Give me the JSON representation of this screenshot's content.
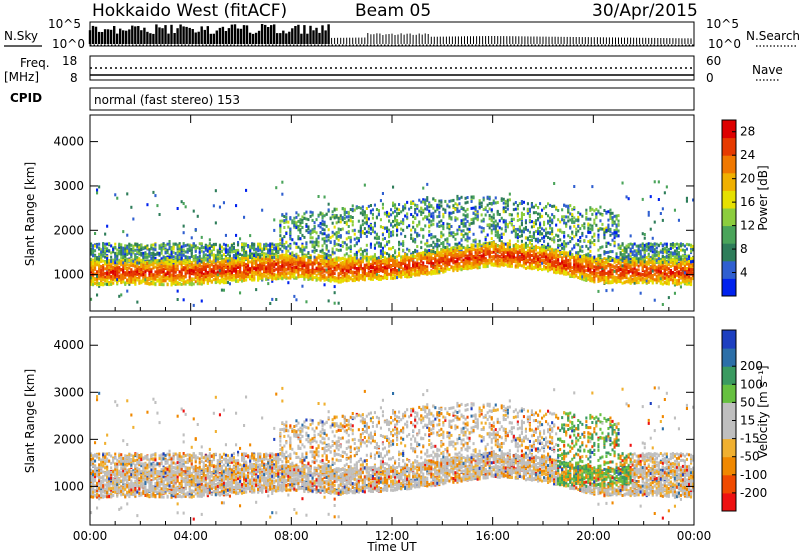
{
  "header": {
    "station": "Hokkaido West (fitACF)",
    "beam": "Beam 05",
    "date": "30/Apr/2015"
  },
  "params": {
    "nsky_label": "N.Sky",
    "nsearch_label": "N.Search",
    "noise_ticks": [
      "10^5",
      "10^0"
    ],
    "freq_label_1": "Freq.",
    "freq_label_2": "[MHz]",
    "freq_ticks": [
      "18",
      "8"
    ],
    "nave_label": "Nave",
    "nave_ticks": [
      "60",
      "0"
    ],
    "cpid_label": "CPID",
    "cpid_value": "normal (fast stereo) 153"
  },
  "colors": {
    "power": [
      "#0022ee",
      "#2f5fd0",
      "#2e7d5a",
      "#4aa45a",
      "#8ccd3e",
      "#e6e000",
      "#f0b000",
      "#f07800",
      "#e63a00",
      "#dd0000"
    ],
    "velocity": [
      "#ee1111",
      "#f04a00",
      "#f08800",
      "#f0b030",
      "#bfbfbf",
      "#bfbfbf",
      "#66c040",
      "#3a9a60",
      "#2c6fa8",
      "#1d3fc0"
    ]
  },
  "chart_data": [
    {
      "type": "heatmap",
      "name": "power",
      "xlabel": "Time UT",
      "ylabel": "Slant Range [km]",
      "x_ticks": [
        "00:00",
        "04:00",
        "08:00",
        "12:00",
        "16:00",
        "20:00",
        "00:00"
      ],
      "xlim_hours": [
        0,
        24
      ],
      "y_ticks": [
        1000,
        2000,
        3000,
        4000
      ],
      "ylim": [
        180,
        4600
      ],
      "colorbar": {
        "label": "Power [dB]",
        "ticks": [
          4,
          8,
          12,
          16,
          20,
          24,
          28
        ],
        "range": [
          0,
          30
        ]
      },
      "echo_band_center_km": [
        [
          0,
          1050
        ],
        [
          4,
          1050
        ],
        [
          8,
          1200
        ],
        [
          10,
          1100
        ],
        [
          12,
          1150
        ],
        [
          14,
          1300
        ],
        [
          16,
          1450
        ],
        [
          18,
          1350
        ],
        [
          20,
          1100
        ],
        [
          24,
          1050
        ]
      ],
      "notes_from_figure": "Strong echoes (20-28 dB) around 900-1300 km; weaker scatter 1500-2700 km, mostly 08:00-21:00."
    },
    {
      "type": "heatmap",
      "name": "velocity",
      "xlabel": "Time UT",
      "ylabel": "Slant Range [km]",
      "x_ticks": [
        "00:00",
        "04:00",
        "08:00",
        "12:00",
        "16:00",
        "20:00",
        "00:00"
      ],
      "xlim_hours": [
        0,
        24
      ],
      "y_ticks": [
        1000,
        2000,
        3000,
        4000
      ],
      "ylim": [
        180,
        4600
      ],
      "colorbar": {
        "label": "Velocity [m s⁻¹]",
        "ticks": [
          200,
          100,
          50,
          15,
          -15,
          -50,
          -100,
          -200
        ],
        "range": [
          -250,
          250
        ]
      },
      "notes_from_figure": "Mostly near-zero (-15 to 15) velocities with negative (orange) patches; positive (green) scatter 1000-2500 km around 19:00-21:00."
    }
  ]
}
